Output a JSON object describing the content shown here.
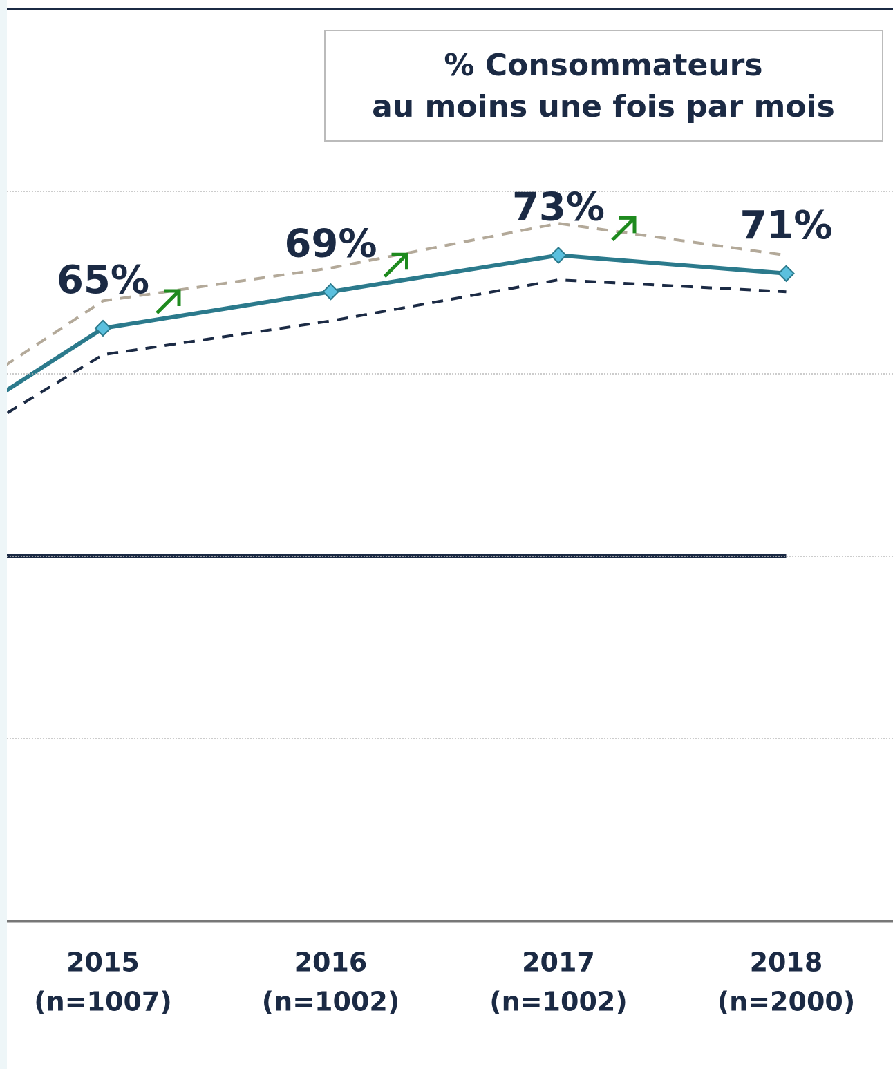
{
  "chart_data": {
    "type": "line",
    "title_lines": [
      "% Consommateurs",
      "au moins une fois par mois"
    ],
    "categories": [
      null,
      "2015",
      "2016",
      "2017",
      "2018"
    ],
    "sample_sizes": [
      null,
      "(n=1007)",
      "(n=1002)",
      "(n=1002)",
      "(n=2000)"
    ],
    "series": [
      {
        "color": "#b3a999",
        "dash": true,
        "values": [
          51.5,
          68,
          71.6,
          76.5,
          73
        ]
      },
      {
        "color": "#1b2a44",
        "dash": true,
        "values": [
          46.9,
          62.1,
          65.8,
          70.3,
          69
        ]
      },
      {
        "color": "#2b7a8c",
        "dash": false,
        "markers": true,
        "values": [
          48.9,
          65,
          69,
          73,
          71
        ],
        "value_labels": [
          null,
          "65%",
          "69%",
          "73%",
          "71%"
        ]
      },
      {
        "color": "#1b2a44",
        "dash": false,
        "thick": true,
        "values": [
          40,
          40,
          40,
          40,
          40
        ]
      }
    ],
    "significant_increase": [
      false,
      true,
      true,
      true,
      false
    ],
    "ylim": [
      0,
      100
    ],
    "yticks": [
      0,
      20,
      40,
      60,
      80,
      100
    ],
    "grid": true
  }
}
